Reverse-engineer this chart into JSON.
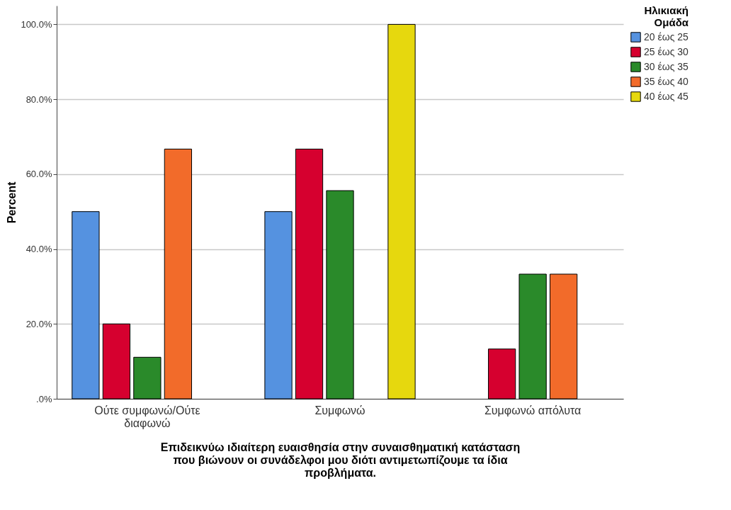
{
  "chart_data": {
    "type": "bar",
    "xlabel": "Επιδεικνύω ιδιαίτερη  ευαισθησία στην συναισθηματική κατάσταση\nπου βιώνουν οι συνάδελφοι μου διότι αντιμετωπίζουμε τα ίδια\nπροβλήματα.",
    "ylabel": "Percent",
    "legend_title": "Ηλικιακή\nΟμάδα",
    "categories": [
      "Ούτε συμφωνώ/Ούτε\nδιαφωνώ",
      "Συμφωνώ",
      "Συμφωνώ απόλυτα"
    ],
    "series": [
      {
        "name": "20 έως 25",
        "color": "#5592e0",
        "values": [
          50,
          50,
          null
        ]
      },
      {
        "name": "25 έως 30",
        "color": "#d6002f",
        "values": [
          20,
          66.7,
          13.3
        ]
      },
      {
        "name": "30 έως 35",
        "color": "#2a8a2a",
        "values": [
          11.1,
          55.6,
          33.3
        ]
      },
      {
        "name": "35 έως 40",
        "color": "#f26b2a",
        "values": [
          66.7,
          null,
          33.3
        ]
      },
      {
        "name": "40 έως 45",
        "color": "#e6d80e",
        "values": [
          null,
          100,
          null
        ]
      }
    ],
    "ylim": [
      0,
      105
    ],
    "yticks": [
      {
        "value": 0,
        "label": ".0%"
      },
      {
        "value": 20,
        "label": "20.0%"
      },
      {
        "value": 40,
        "label": "40.0%"
      },
      {
        "value": 60,
        "label": "60.0%"
      },
      {
        "value": 80,
        "label": "80.0%"
      },
      {
        "value": 100,
        "label": "100.0%"
      }
    ],
    "grid": "y",
    "legend": "top right"
  }
}
